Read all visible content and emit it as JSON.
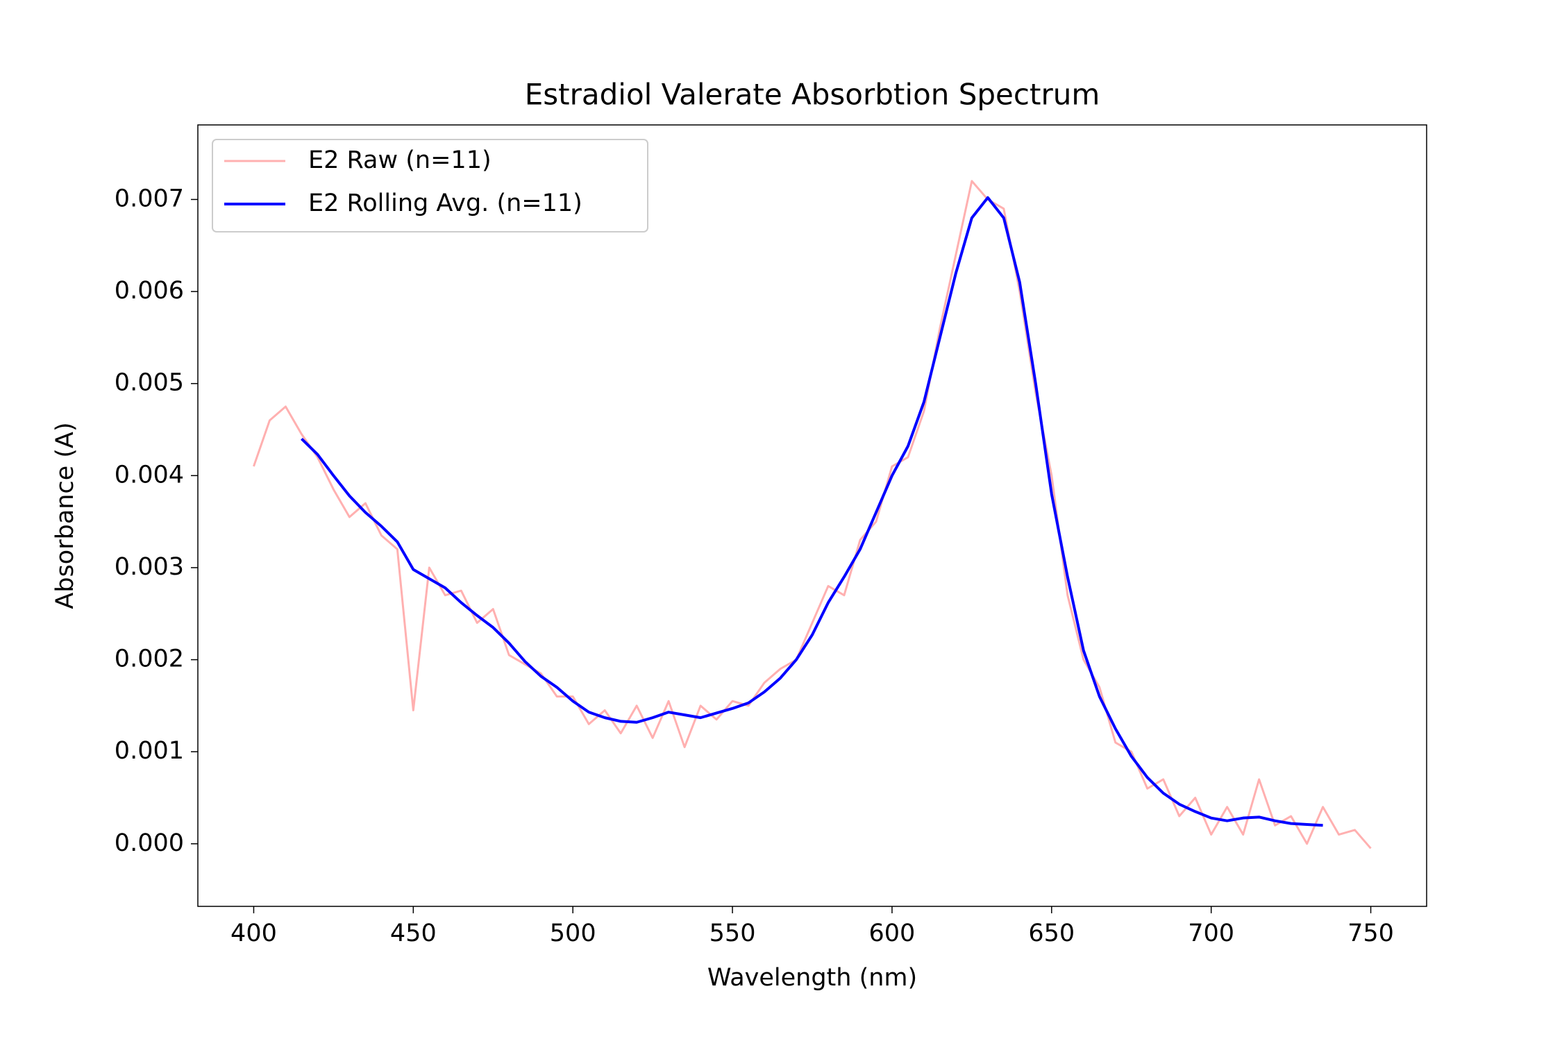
{
  "chart_data": {
    "type": "line",
    "title": "Estradiol Valerate Absorbtion Spectrum",
    "x_label": "Wavelength (nm)",
    "y_label": "Absorbance (A)",
    "xlim": [
      382.5,
      767.5
    ],
    "ylim": [
      -0.00068,
      0.00781
    ],
    "xticks": [
      400,
      450,
      500,
      550,
      600,
      650,
      700,
      750
    ],
    "yticks": [
      {
        "value": 0,
        "label": "0.000"
      },
      0.001,
      0.002,
      0.003,
      0.004,
      0.005,
      0.006,
      0.007
    ],
    "legend": "upper left",
    "grid": false,
    "series": [
      {
        "name": "E2 Raw (n=11)",
        "color": "#ffb0b0",
        "x": [
          400,
          405,
          410,
          415,
          420,
          425,
          430,
          435,
          440,
          445,
          450,
          455,
          460,
          465,
          470,
          475,
          480,
          485,
          490,
          495,
          500,
          505,
          510,
          515,
          520,
          525,
          530,
          535,
          540,
          545,
          550,
          555,
          560,
          565,
          570,
          575,
          580,
          585,
          590,
          595,
          600,
          605,
          610,
          615,
          620,
          625,
          630,
          635,
          640,
          645,
          650,
          655,
          660,
          665,
          670,
          675,
          680,
          685,
          690,
          695,
          700,
          705,
          710,
          715,
          720,
          725,
          730,
          735,
          740,
          745,
          750
        ],
        "values": [
          0.0041,
          0.0046,
          0.00475,
          0.00445,
          0.0042,
          0.00385,
          0.00355,
          0.0037,
          0.00335,
          0.0032,
          0.00145,
          0.003,
          0.0027,
          0.00275,
          0.0024,
          0.00255,
          0.00205,
          0.00195,
          0.00185,
          0.0016,
          0.0016,
          0.0013,
          0.00145,
          0.0012,
          0.0015,
          0.00115,
          0.00155,
          0.00105,
          0.0015,
          0.00135,
          0.00155,
          0.0015,
          0.00175,
          0.0019,
          0.002,
          0.0024,
          0.0028,
          0.0027,
          0.0033,
          0.0035,
          0.0041,
          0.0042,
          0.0047,
          0.0056,
          0.0064,
          0.0072,
          0.007,
          0.0069,
          0.006,
          0.0049,
          0.004,
          0.0027,
          0.002,
          0.0017,
          0.0011,
          0.001,
          0.0006,
          0.0007,
          0.0003,
          0.0005,
          0.0001,
          0.0004,
          0.0001,
          0.0007,
          0.0002,
          0.0003,
          0.0,
          0.0004,
          0.0001,
          0.00015,
          -5e-05
        ]
      },
      {
        "name": "E2 Rolling Avg. (n=11)",
        "color": "#0000ff",
        "x": [
          415,
          420,
          425,
          430,
          435,
          440,
          445,
          450,
          455,
          460,
          465,
          470,
          475,
          480,
          485,
          490,
          495,
          500,
          505,
          510,
          515,
          520,
          525,
          530,
          535,
          540,
          545,
          550,
          555,
          560,
          565,
          570,
          575,
          580,
          585,
          590,
          595,
          600,
          605,
          610,
          615,
          620,
          625,
          630,
          635,
          640,
          645,
          650,
          655,
          660,
          665,
          670,
          675,
          680,
          685,
          690,
          695,
          700,
          705,
          710,
          715,
          720,
          725,
          730,
          735
        ],
        "values": [
          0.0044,
          0.00423,
          0.004,
          0.00378,
          0.0036,
          0.00345,
          0.00328,
          0.00298,
          0.00288,
          0.00278,
          0.00262,
          0.00248,
          0.00235,
          0.00218,
          0.00198,
          0.00182,
          0.0017,
          0.00155,
          0.00143,
          0.00137,
          0.00133,
          0.00132,
          0.00137,
          0.00143,
          0.0014,
          0.00137,
          0.00142,
          0.00147,
          0.00153,
          0.00165,
          0.0018,
          0.002,
          0.00227,
          0.00262,
          0.0029,
          0.0032,
          0.0036,
          0.004,
          0.00432,
          0.0048,
          0.0055,
          0.0062,
          0.0068,
          0.00702,
          0.0068,
          0.0061,
          0.005,
          0.0038,
          0.0029,
          0.0021,
          0.0016,
          0.00125,
          0.00095,
          0.00072,
          0.00055,
          0.00043,
          0.00035,
          0.00028,
          0.00025,
          0.00028,
          0.00029,
          0.00025,
          0.00022,
          0.00021,
          0.0002
        ]
      }
    ]
  }
}
